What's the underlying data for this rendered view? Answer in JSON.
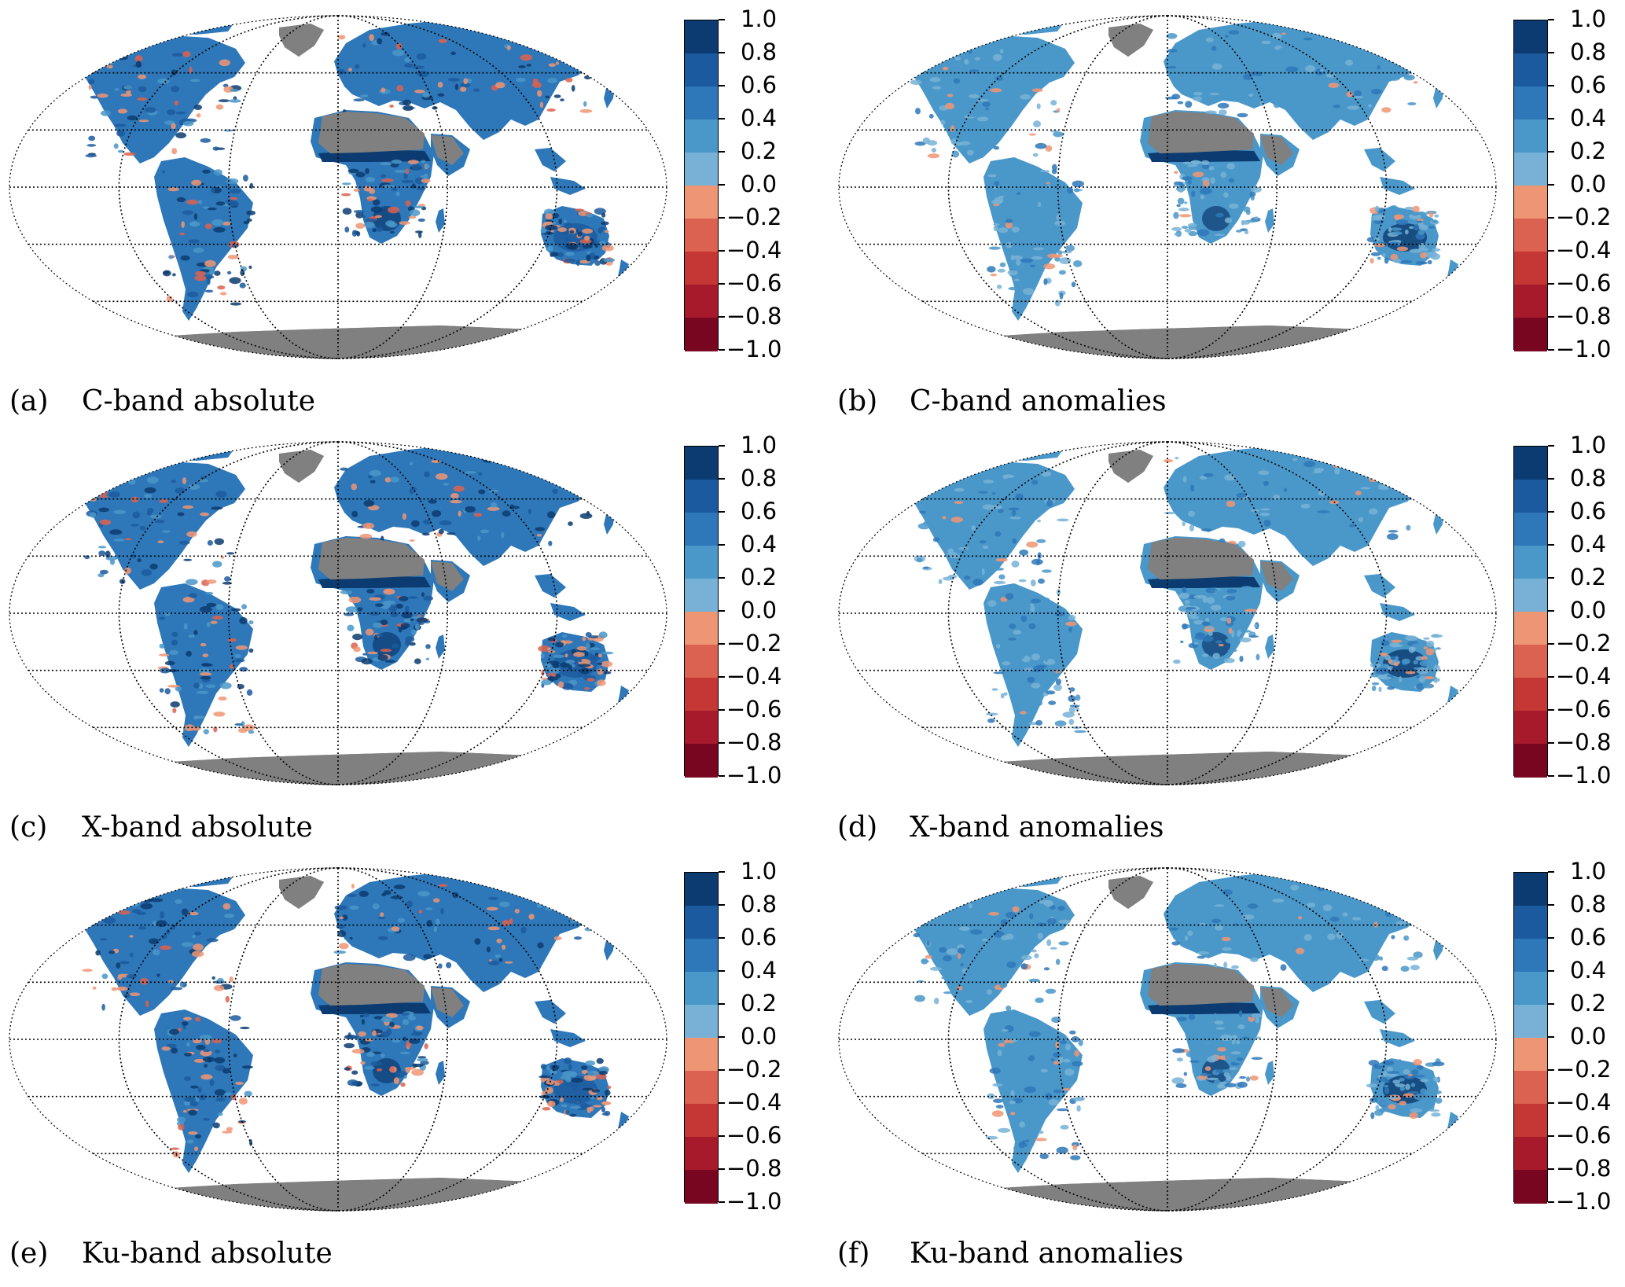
{
  "colorbar": {
    "ticks": [
      "1.0",
      "0.8",
      "0.6",
      "0.4",
      "0.2",
      "0.0",
      "−0.2",
      "−0.4",
      "−0.6",
      "−0.8",
      "−1.0"
    ],
    "colors": [
      "#0b3b70",
      "#1b5a9e",
      "#2e77b8",
      "#4a97c9",
      "#77b2d6",
      "#ee9574",
      "#db6150",
      "#c43734",
      "#a71a2b",
      "#780620"
    ]
  },
  "land_colors": {
    "masked": "#808080",
    "grid": "#000000"
  },
  "panels": [
    {
      "letter": "(a)",
      "title": "C-band absolute",
      "mode": "absolute"
    },
    {
      "letter": "(b)",
      "title": "C-band anomalies",
      "mode": "anomalies"
    },
    {
      "letter": "(c)",
      "title": "X-band absolute",
      "mode": "absolute"
    },
    {
      "letter": "(d)",
      "title": "X-band anomalies",
      "mode": "anomalies"
    },
    {
      "letter": "(e)",
      "title": "Ku-band absolute",
      "mode": "absolute"
    },
    {
      "letter": "(f)",
      "title": "Ku-band anomalies",
      "mode": "anomalies"
    }
  ]
}
